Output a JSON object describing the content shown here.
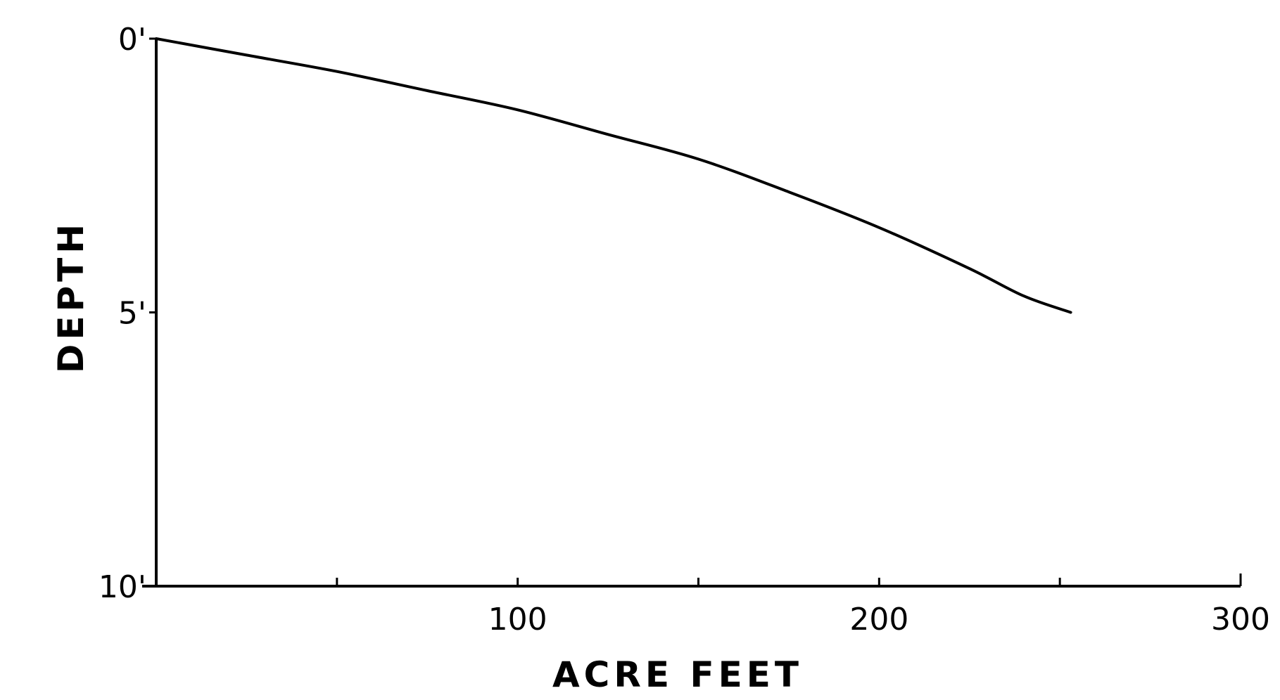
{
  "chart_data": {
    "type": "line",
    "xlabel": "ACRE FEET",
    "ylabel": "DEPTH",
    "xlim": [
      0,
      300
    ],
    "ylim": [
      0,
      10
    ],
    "y_inverted": true,
    "grid": false,
    "x_ticks": [
      {
        "value": 0,
        "label": ""
      },
      {
        "value": 50,
        "label": ""
      },
      {
        "value": 100,
        "label": "100"
      },
      {
        "value": 150,
        "label": ""
      },
      {
        "value": 200,
        "label": "200"
      },
      {
        "value": 250,
        "label": ""
      },
      {
        "value": 300,
        "label": "300"
      }
    ],
    "y_ticks": [
      {
        "value": 0,
        "label": "0'"
      },
      {
        "value": 5,
        "label": "5'"
      },
      {
        "value": 10,
        "label": "10'"
      }
    ],
    "series": [
      {
        "x": [
          0,
          25,
          50,
          75,
          100,
          125,
          150,
          175,
          200,
          225,
          240,
          253
        ],
        "y": [
          0,
          0.3,
          0.6,
          0.95,
          1.3,
          1.75,
          2.2,
          2.8,
          3.45,
          4.2,
          4.7,
          5.0
        ]
      }
    ],
    "line_color": "#000000"
  }
}
